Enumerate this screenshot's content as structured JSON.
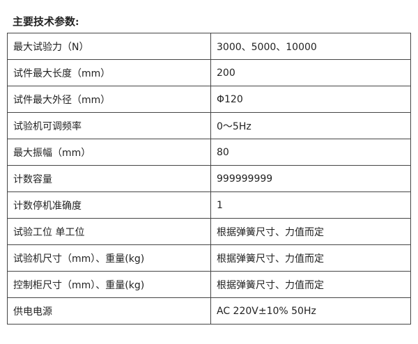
{
  "title": "主要技术参数:",
  "rows": [
    {
      "param": "最大试验力（N）",
      "value": "3000、5000、10000"
    },
    {
      "param": "试件最大长度（mm）",
      "value": "200"
    },
    {
      "param": "试件最大外径（mm）",
      "value": "Φ120"
    },
    {
      "param": "试验机可调频率",
      "value": "0～5Hz"
    },
    {
      "param": "最大振幅（mm）",
      "value": "80"
    },
    {
      "param": "计数容量",
      "value": "999999999"
    },
    {
      "param": "计数停机准确度",
      "value": "1"
    },
    {
      "param": "试验工位 单工位",
      "value": "根据弹簧尺寸、力值而定"
    },
    {
      "param": "试验机尺寸（mm）、重量(kg)",
      "value": "根据弹簧尺寸、力值而定"
    },
    {
      "param": "控制柜尺寸（mm）、重量(kg)",
      "value": "根据弹簧尺寸、力值而定"
    },
    {
      "param": "供电电源",
      "value": "AC 220V±10%   50Hz"
    }
  ]
}
